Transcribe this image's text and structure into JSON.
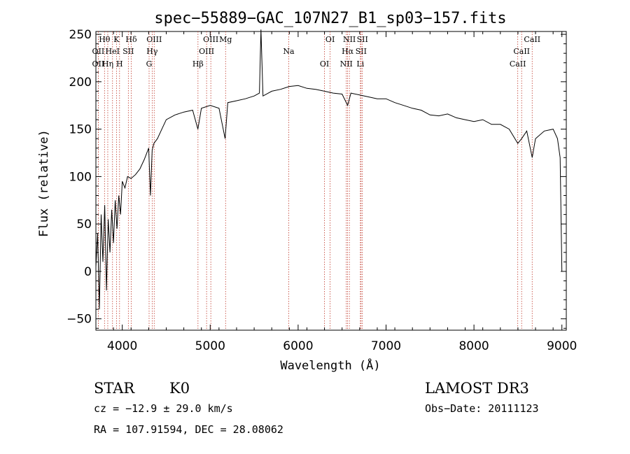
{
  "chart_data": {
    "type": "line",
    "title": "spec−55889−GAC_107N27_B1_sp03−157.fits",
    "xlabel": "Wavelength (Å)",
    "ylabel": "Flux (relative)",
    "xlim": [
      3700,
      9050
    ],
    "ylim": [
      -62,
      253
    ],
    "xticks": [
      4000,
      5000,
      6000,
      7000,
      8000,
      9000
    ],
    "yticks": [
      -50,
      0,
      50,
      100,
      150,
      200,
      250
    ],
    "grid": false,
    "series": [
      {
        "color": "#000000",
        "x": [
          3700,
          3720,
          3740,
          3760,
          3780,
          3800,
          3820,
          3840,
          3860,
          3880,
          3900,
          3920,
          3940,
          3960,
          3980,
          4000,
          4030,
          4060,
          4100,
          4150,
          4200,
          4250,
          4300,
          4320,
          4340,
          4360,
          4400,
          4450,
          4500,
          4600,
          4700,
          4800,
          4860,
          4900,
          5000,
          5100,
          5170,
          5200,
          5300,
          5400,
          5500,
          5560,
          5577,
          5600,
          5700,
          5800,
          5900,
          6000,
          6100,
          6200,
          6300,
          6400,
          6500,
          6563,
          6600,
          6700,
          6800,
          6900,
          7000,
          7100,
          7200,
          7300,
          7400,
          7500,
          7600,
          7700,
          7800,
          7900,
          8000,
          8100,
          8200,
          8300,
          8400,
          8498,
          8542,
          8600,
          8662,
          8700,
          8800,
          8900,
          8950,
          8980,
          9000
        ],
        "y": [
          5,
          40,
          -40,
          60,
          10,
          70,
          -20,
          55,
          20,
          65,
          30,
          75,
          45,
          80,
          60,
          95,
          88,
          100,
          98,
          102,
          108,
          118,
          130,
          80,
          128,
          135,
          140,
          150,
          160,
          165,
          168,
          170,
          150,
          172,
          175,
          172,
          140,
          178,
          180,
          182,
          185,
          188,
          255,
          185,
          190,
          192,
          195,
          196,
          193,
          192,
          190,
          188,
          187,
          175,
          188,
          186,
          184,
          182,
          182,
          178,
          175,
          172,
          170,
          165,
          164,
          166,
          162,
          160,
          158,
          160,
          155,
          155,
          150,
          135,
          140,
          148,
          120,
          140,
          148,
          150,
          140,
          120,
          0
        ]
      }
    ],
    "lines": [
      {
        "label": "Hθ",
        "x": 3798
      },
      {
        "label": "OII",
        "x": 3727
      },
      {
        "label": "OII",
        "x": 3727
      },
      {
        "label": "K",
        "x": 3934
      },
      {
        "label": "HeI",
        "x": 3889
      },
      {
        "label": "Hη",
        "x": 3835
      },
      {
        "label": "Hδ",
        "x": 4102
      },
      {
        "label": "SII",
        "x": 4069
      },
      {
        "label": "H",
        "x": 3969
      },
      {
        "label": "OIII",
        "x": 4363
      },
      {
        "label": "Hγ",
        "x": 4340
      },
      {
        "label": "G",
        "x": 4305
      },
      {
        "label": "OIII",
        "x": 5007
      },
      {
        "label": "OIII",
        "x": 4959
      },
      {
        "label": "Hβ",
        "x": 4861
      },
      {
        "label": "Mg",
        "x": 5175
      },
      {
        "label": "Na",
        "x": 5893
      },
      {
        "label": "OI",
        "x": 6300
      },
      {
        "label": "OI",
        "x": 6364
      },
      {
        "label": "Hα",
        "x": 6563
      },
      {
        "label": "NII",
        "x": 6548
      },
      {
        "label": "NII",
        "x": 6583
      },
      {
        "label": "SII",
        "x": 6716
      },
      {
        "label": "Li",
        "x": 6708
      },
      {
        "label": "SII",
        "x": 6731
      },
      {
        "label": "CaII",
        "x": 8542
      },
      {
        "label": "CaII",
        "x": 8498
      },
      {
        "label": "CaII",
        "x": 8662
      }
    ]
  },
  "info": {
    "class": "STAR",
    "subclass": "K0",
    "survey": "LAMOST DR3",
    "cz": "cz = −12.9 ± 29.0 km/s",
    "obs_date": "Obs−Date: 20111123",
    "radec": "RA = 107.91594, DEC =  28.08062"
  }
}
